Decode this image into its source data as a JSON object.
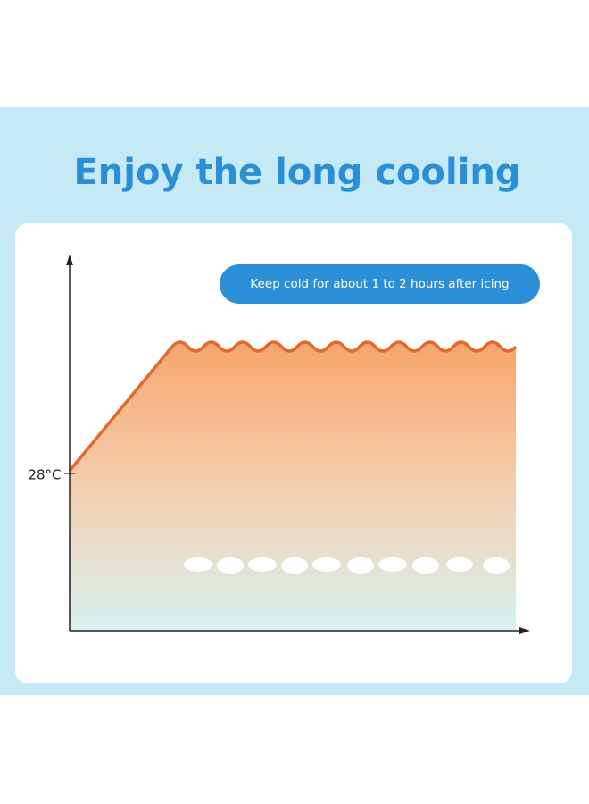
{
  "header": {
    "title": "Enjoy the long cooling"
  },
  "badge": {
    "text": "Keep cold for about 1 to 2 hours after icing"
  },
  "axis": {
    "y_label": "28°C"
  }
}
